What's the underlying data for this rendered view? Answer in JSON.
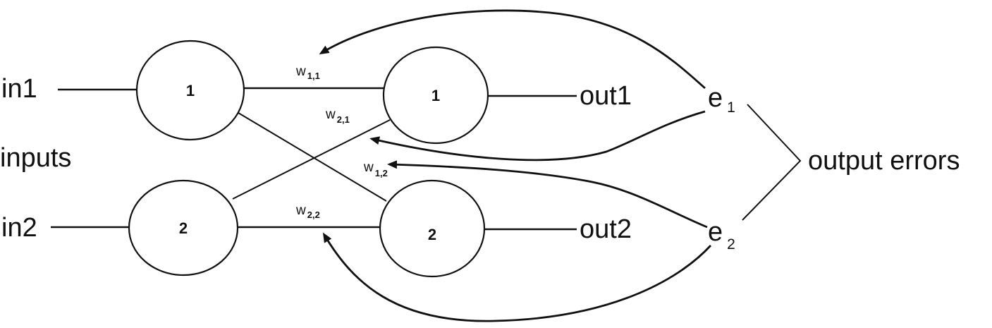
{
  "inputs": {
    "in1": "in1",
    "in2": "in2",
    "group_label": "inputs"
  },
  "hidden_layer": {
    "node1": "1",
    "node2": "2"
  },
  "output_layer": {
    "node1": "1",
    "node2": "2"
  },
  "outputs": {
    "out1": "out1",
    "out2": "out2"
  },
  "weights": {
    "w11": {
      "base": "w",
      "sub": "1,1"
    },
    "w21": {
      "base": "w",
      "sub": "2,1"
    },
    "w12": {
      "base": "w",
      "sub": "1,2"
    },
    "w22": {
      "base": "w",
      "sub": "2,2"
    }
  },
  "errors": {
    "e1": {
      "base": "e",
      "sub": "1"
    },
    "e2": {
      "base": "e",
      "sub": "2"
    },
    "group_label": "output errors"
  }
}
